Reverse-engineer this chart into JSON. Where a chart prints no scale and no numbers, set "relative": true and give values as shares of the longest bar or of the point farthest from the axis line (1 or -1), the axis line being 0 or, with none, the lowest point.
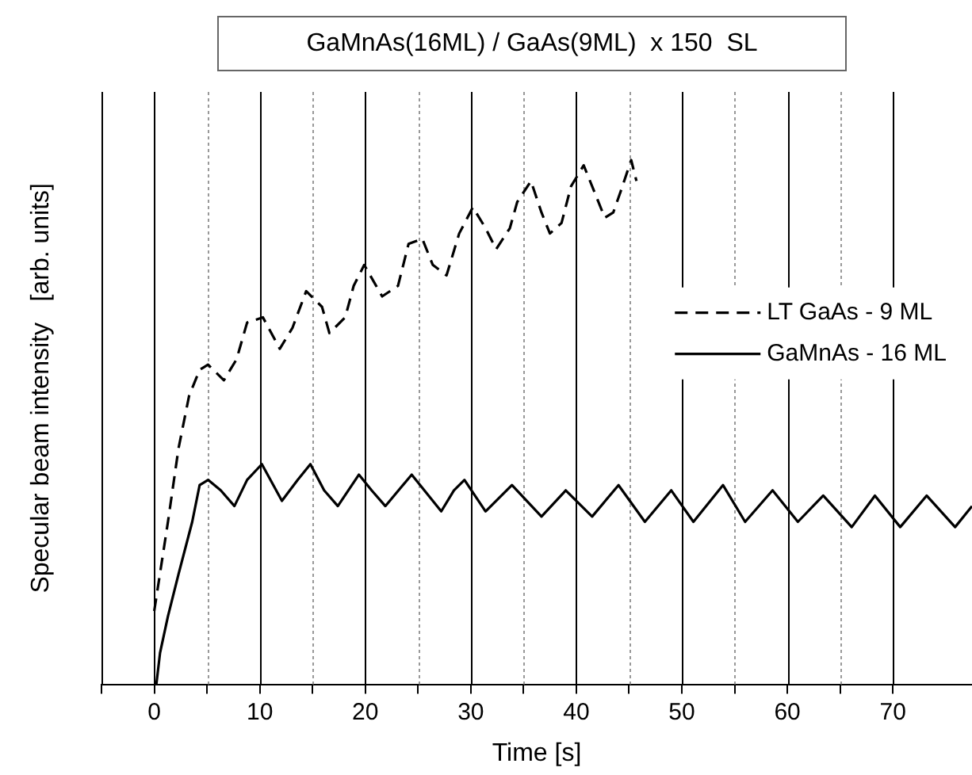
{
  "chart_data": {
    "type": "line",
    "title": "GaMnAs(16ML) / GaAs(9ML)  x 150  SL",
    "xlabel": "Time [s]",
    "ylabel": "Specular beam intensity   [arb. units]",
    "relative": true,
    "xlim": [
      -5,
      77.5
    ],
    "xticks": [
      {
        "value": -5,
        "label": null
      },
      0,
      {
        "value": 5,
        "label": null
      },
      10,
      {
        "value": 15,
        "label": null
      },
      20,
      {
        "value": 25,
        "label": null
      },
      30,
      {
        "value": 35,
        "label": null
      },
      40,
      {
        "value": 45,
        "label": null
      },
      50,
      {
        "value": 55,
        "label": null
      },
      60,
      {
        "value": 65,
        "label": null
      },
      70
    ],
    "grid": "x",
    "legend": "right",
    "marker": "none",
    "series": [
      {
        "name": "LT GaAs - 9 ML",
        "color": "#000000",
        "line_style": "dashed",
        "x": [
          0,
          1.3,
          2.3,
          3.3,
          4.3,
          5.1,
          6.6,
          7.8,
          8.8,
          10.3,
          11.9,
          13.1,
          14.4,
          15.9,
          16.6,
          18.1,
          18.9,
          19.9,
          21.6,
          23.1,
          24.1,
          25.4,
          26.4,
          27.7,
          28.9,
          30.2,
          31.4,
          32.4,
          33.7,
          34.4,
          35.7,
          36.7,
          37.5,
          38.6,
          39.5,
          40.7,
          41.7,
          42.7,
          43.5,
          44.2,
          45.2,
          45.7
        ],
        "values": [
          0.14,
          0.31,
          0.45,
          0.55,
          0.6,
          0.61,
          0.58,
          0.62,
          0.69,
          0.7,
          0.64,
          0.68,
          0.75,
          0.72,
          0.67,
          0.7,
          0.76,
          0.8,
          0.74,
          0.76,
          0.84,
          0.85,
          0.8,
          0.78,
          0.86,
          0.91,
          0.87,
          0.83,
          0.87,
          0.92,
          0.96,
          0.9,
          0.86,
          0.88,
          0.95,
          0.99,
          0.94,
          0.89,
          0.9,
          0.94,
          1,
          0.96
        ]
      },
      {
        "name": "GaMnAs - 16 ML",
        "color": "#000000",
        "line_style": "solid",
        "x": [
          0.2,
          0.55,
          1.3,
          2.3,
          3.6,
          4.3,
          5.1,
          6.3,
          7.6,
          8.8,
          10.2,
          12.1,
          13.6,
          14.8,
          16.1,
          17.4,
          19.4,
          20.6,
          21.9,
          24.4,
          27.2,
          28.4,
          29.4,
          31.4,
          33.9,
          36.7,
          39,
          41.5,
          44,
          46.5,
          49,
          51.1,
          53.9,
          56,
          58.6,
          61,
          63.4,
          66.1,
          68.3,
          70.7,
          73.2,
          75.9,
          77.5
        ],
        "values": [
          0,
          0.06,
          0.13,
          0.21,
          0.31,
          0.38,
          0.39,
          0.37,
          0.34,
          0.39,
          0.42,
          0.35,
          0.39,
          0.42,
          0.37,
          0.34,
          0.4,
          0.37,
          0.34,
          0.4,
          0.33,
          0.37,
          0.39,
          0.33,
          0.38,
          0.32,
          0.37,
          0.32,
          0.38,
          0.31,
          0.37,
          0.31,
          0.38,
          0.31,
          0.37,
          0.31,
          0.36,
          0.3,
          0.36,
          0.3,
          0.36,
          0.3,
          0.34
        ]
      }
    ]
  }
}
